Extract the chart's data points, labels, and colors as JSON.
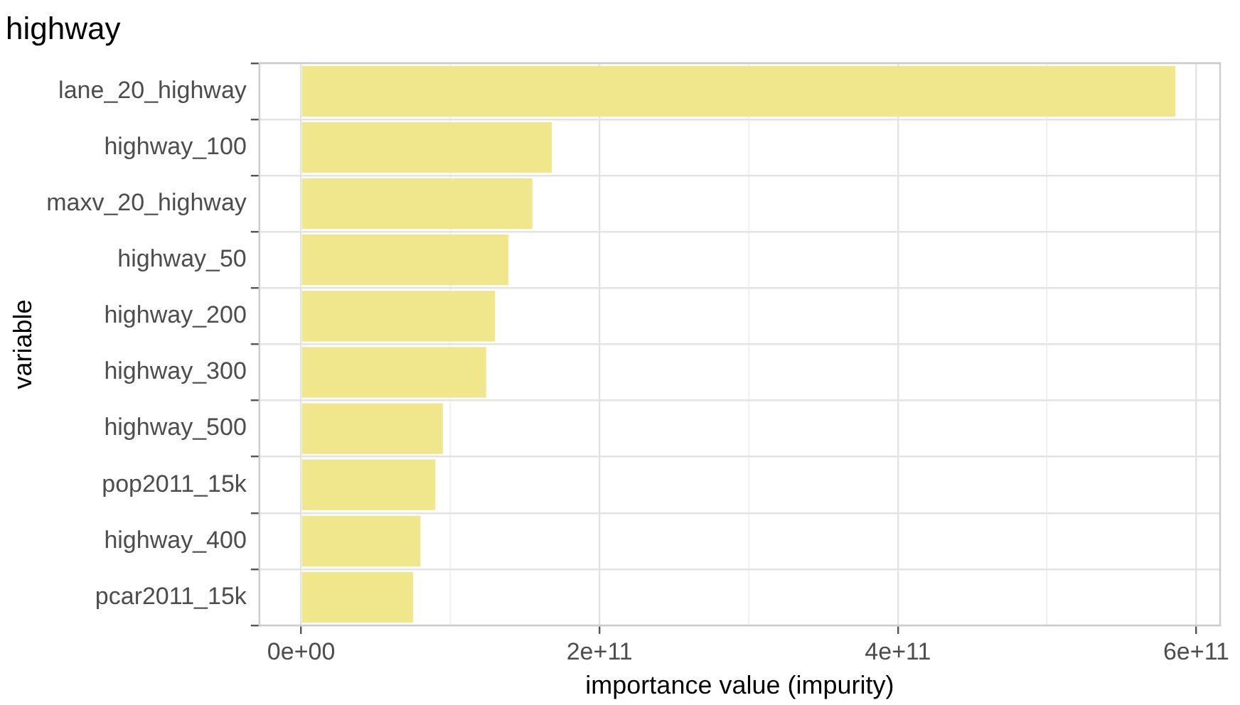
{
  "chart_data": {
    "type": "bar",
    "orientation": "horizontal",
    "title": "highway",
    "xlabel": "importance value (impurity)",
    "ylabel": "variable",
    "categories": [
      "lane_20_highway",
      "highway_100",
      "maxv_20_highway",
      "highway_50",
      "highway_200",
      "highway_300",
      "highway_500",
      "pop2011_15k",
      "highway_400",
      "pcar2011_15k"
    ],
    "values": [
      586000000000.0,
      168000000000.0,
      155000000000.0,
      139000000000.0,
      130000000000.0,
      124000000000.0,
      95000000000.0,
      90000000000.0,
      80000000000.0,
      75000000000.0
    ],
    "color": "#f0e68c",
    "xlim": [
      -28000000000.0,
      616000000000.0
    ],
    "xticks": [
      {
        "value": 0,
        "label": "0e+00"
      },
      {
        "value": 100000000000.0,
        "label": null
      },
      {
        "value": 200000000000.0,
        "label": "2e+11"
      },
      {
        "value": 300000000000.0,
        "label": null
      },
      {
        "value": 400000000000.0,
        "label": "4e+11"
      },
      {
        "value": 500000000000.0,
        "label": null
      },
      {
        "value": 600000000000.0,
        "label": "6e+11"
      }
    ],
    "grid": true,
    "legend": false
  }
}
